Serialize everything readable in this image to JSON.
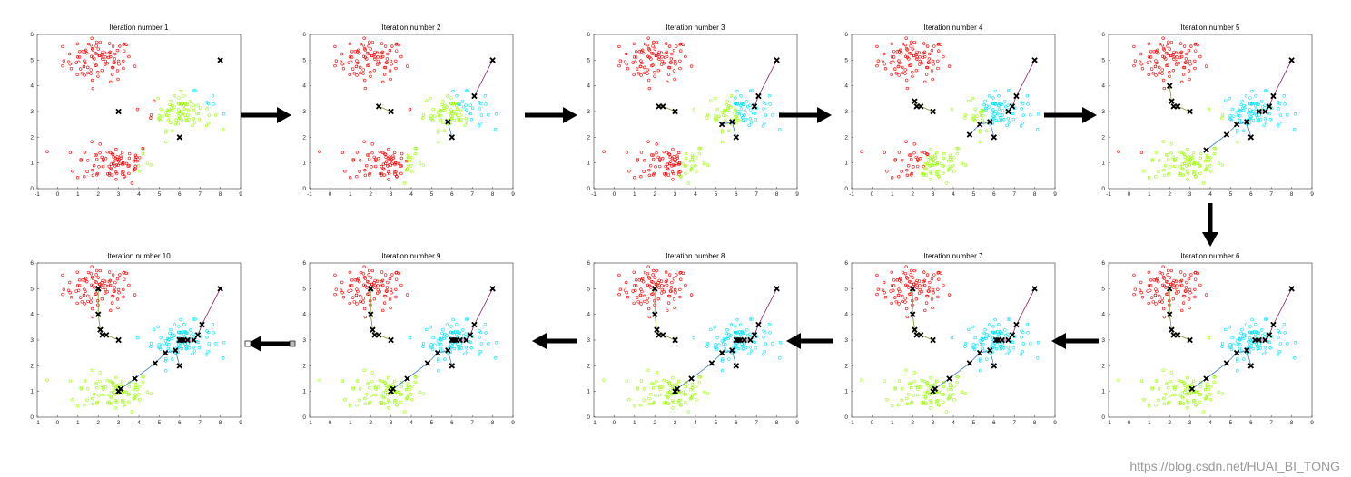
{
  "figure": {
    "watermark": "https://blog.csdn.net/HUAI_BI_TONG",
    "arrow_color": "#000000",
    "cluster_colors": {
      "red": "#ff0000",
      "green": "#99ff00",
      "cyan": "#00e5ff"
    },
    "centroid_marker": "x",
    "path_colors": [
      "#8b1a6b",
      "#7a9a2a",
      "#3a7fc4",
      "#8b1a6b"
    ]
  },
  "chart_data": [
    {
      "type": "scatter",
      "title": "Iteration number 1",
      "xlim": [
        -1,
        9
      ],
      "ylim": [
        0,
        6
      ],
      "xticks": [
        "-1",
        "0",
        "1",
        "2",
        "3",
        "4",
        "5",
        "6",
        "7",
        "8",
        "9"
      ],
      "yticks": [
        "0",
        "1",
        "2",
        "3",
        "4",
        "5",
        "6"
      ],
      "centroid_paths": [
        [
          [
            3.0,
            3.0
          ]
        ],
        [
          [
            6.0,
            2.0
          ]
        ],
        [
          [
            8.0,
            5.0
          ]
        ]
      ]
    },
    {
      "type": "scatter",
      "title": "Iteration number 2",
      "xlim": [
        -1,
        9
      ],
      "ylim": [
        0,
        6
      ],
      "xticks": [
        "-1",
        "0",
        "1",
        "2",
        "3",
        "4",
        "5",
        "6",
        "7",
        "8",
        "9"
      ],
      "yticks": [
        "0",
        "1",
        "2",
        "3",
        "4",
        "5",
        "6"
      ],
      "centroid_paths": [
        [
          [
            3.0,
            3.0
          ],
          [
            2.4,
            3.2
          ]
        ],
        [
          [
            6.0,
            2.0
          ],
          [
            5.8,
            2.6
          ]
        ],
        [
          [
            8.0,
            5.0
          ],
          [
            7.1,
            3.6
          ]
        ]
      ]
    },
    {
      "type": "scatter",
      "title": "Iteration number 3",
      "xlim": [
        -1,
        9
      ],
      "ylim": [
        0,
        6
      ],
      "xticks": [
        "-1",
        "0",
        "1",
        "2",
        "3",
        "4",
        "5",
        "6",
        "7",
        "8",
        "9"
      ],
      "yticks": [
        "0",
        "1",
        "2",
        "3",
        "4",
        "5",
        "6"
      ],
      "centroid_paths": [
        [
          [
            3.0,
            3.0
          ],
          [
            2.4,
            3.2
          ],
          [
            2.2,
            3.2
          ]
        ],
        [
          [
            6.0,
            2.0
          ],
          [
            5.8,
            2.6
          ],
          [
            5.3,
            2.5
          ]
        ],
        [
          [
            8.0,
            5.0
          ],
          [
            7.1,
            3.6
          ],
          [
            6.9,
            3.2
          ]
        ]
      ]
    },
    {
      "type": "scatter",
      "title": "Iteration number 4",
      "xlim": [
        -1,
        9
      ],
      "ylim": [
        0,
        6
      ],
      "xticks": [
        "-1",
        "0",
        "1",
        "2",
        "3",
        "4",
        "5",
        "6",
        "7",
        "8",
        "9"
      ],
      "yticks": [
        "0",
        "1",
        "2",
        "3",
        "4",
        "5",
        "6"
      ],
      "centroid_paths": [
        [
          [
            3.0,
            3.0
          ],
          [
            2.4,
            3.2
          ],
          [
            2.2,
            3.2
          ],
          [
            2.1,
            3.4
          ]
        ],
        [
          [
            6.0,
            2.0
          ],
          [
            5.8,
            2.6
          ],
          [
            5.3,
            2.5
          ],
          [
            4.8,
            2.1
          ]
        ],
        [
          [
            8.0,
            5.0
          ],
          [
            7.1,
            3.6
          ],
          [
            6.9,
            3.2
          ],
          [
            6.7,
            3.0
          ]
        ]
      ]
    },
    {
      "type": "scatter",
      "title": "Iteration number 5",
      "xlim": [
        -1,
        9
      ],
      "ylim": [
        0,
        6
      ],
      "xticks": [
        "-1",
        "0",
        "1",
        "2",
        "3",
        "4",
        "5",
        "6",
        "7",
        "8",
        "9"
      ],
      "yticks": [
        "0",
        "1",
        "2",
        "3",
        "4",
        "5",
        "6"
      ],
      "centroid_paths": [
        [
          [
            3.0,
            3.0
          ],
          [
            2.4,
            3.2
          ],
          [
            2.2,
            3.2
          ],
          [
            2.1,
            3.4
          ],
          [
            2.0,
            4.0
          ]
        ],
        [
          [
            6.0,
            2.0
          ],
          [
            5.8,
            2.6
          ],
          [
            5.3,
            2.5
          ],
          [
            4.8,
            2.1
          ],
          [
            3.8,
            1.5
          ]
        ],
        [
          [
            8.0,
            5.0
          ],
          [
            7.1,
            3.6
          ],
          [
            6.9,
            3.2
          ],
          [
            6.7,
            3.0
          ],
          [
            6.4,
            3.0
          ]
        ]
      ]
    },
    {
      "type": "scatter",
      "title": "Iteration number 6",
      "xlim": [
        -1,
        9
      ],
      "ylim": [
        0,
        6
      ],
      "xticks": [
        "-1",
        "0",
        "1",
        "2",
        "3",
        "4",
        "5",
        "6",
        "7",
        "8",
        "9"
      ],
      "yticks": [
        "0",
        "1",
        "2",
        "3",
        "4",
        "5",
        "6"
      ],
      "centroid_paths": [
        [
          [
            3.0,
            3.0
          ],
          [
            2.4,
            3.2
          ],
          [
            2.2,
            3.2
          ],
          [
            2.1,
            3.4
          ],
          [
            2.0,
            4.0
          ],
          [
            2.0,
            5.0
          ]
        ],
        [
          [
            6.0,
            2.0
          ],
          [
            5.8,
            2.6
          ],
          [
            5.3,
            2.5
          ],
          [
            4.8,
            2.1
          ],
          [
            3.8,
            1.5
          ],
          [
            3.1,
            1.1
          ]
        ],
        [
          [
            8.0,
            5.0
          ],
          [
            7.1,
            3.6
          ],
          [
            6.9,
            3.2
          ],
          [
            6.7,
            3.0
          ],
          [
            6.4,
            3.0
          ],
          [
            6.2,
            3.0
          ]
        ]
      ]
    },
    {
      "type": "scatter",
      "title": "Iteration number 7",
      "xlim": [
        -1,
        9
      ],
      "ylim": [
        0,
        6
      ],
      "xticks": [
        "-1",
        "0",
        "1",
        "2",
        "3",
        "4",
        "5",
        "6",
        "7",
        "8",
        "9"
      ],
      "yticks": [
        "0",
        "1",
        "2",
        "3",
        "4",
        "5",
        "6"
      ],
      "centroid_paths": [
        [
          [
            3.0,
            3.0
          ],
          [
            2.4,
            3.2
          ],
          [
            2.2,
            3.2
          ],
          [
            2.1,
            3.4
          ],
          [
            2.0,
            4.0
          ],
          [
            2.0,
            5.0
          ],
          [
            2.0,
            5.0
          ]
        ],
        [
          [
            6.0,
            2.0
          ],
          [
            5.8,
            2.6
          ],
          [
            5.3,
            2.5
          ],
          [
            4.8,
            2.1
          ],
          [
            3.8,
            1.5
          ],
          [
            3.1,
            1.1
          ],
          [
            3.0,
            1.0
          ]
        ],
        [
          [
            8.0,
            5.0
          ],
          [
            7.1,
            3.6
          ],
          [
            6.9,
            3.2
          ],
          [
            6.7,
            3.0
          ],
          [
            6.4,
            3.0
          ],
          [
            6.2,
            3.0
          ],
          [
            6.1,
            3.0
          ]
        ]
      ]
    },
    {
      "type": "scatter",
      "title": "Iteration number 8",
      "xlim": [
        -1,
        9
      ],
      "ylim": [
        0,
        6
      ],
      "xticks": [
        "-1",
        "0",
        "1",
        "2",
        "3",
        "4",
        "5",
        "6",
        "7",
        "8",
        "9"
      ],
      "yticks": [
        "0",
        "1",
        "2",
        "3",
        "4",
        "5",
        "6"
      ],
      "centroid_paths": [
        [
          [
            3.0,
            3.0
          ],
          [
            2.4,
            3.2
          ],
          [
            2.2,
            3.2
          ],
          [
            2.1,
            3.4
          ],
          [
            2.0,
            4.0
          ],
          [
            2.0,
            5.0
          ],
          [
            2.0,
            5.0
          ],
          [
            2.0,
            5.0
          ]
        ],
        [
          [
            6.0,
            2.0
          ],
          [
            5.8,
            2.6
          ],
          [
            5.3,
            2.5
          ],
          [
            4.8,
            2.1
          ],
          [
            3.8,
            1.5
          ],
          [
            3.1,
            1.1
          ],
          [
            3.0,
            1.0
          ],
          [
            3.0,
            1.0
          ]
        ],
        [
          [
            8.0,
            5.0
          ],
          [
            7.1,
            3.6
          ],
          [
            6.9,
            3.2
          ],
          [
            6.7,
            3.0
          ],
          [
            6.4,
            3.0
          ],
          [
            6.2,
            3.0
          ],
          [
            6.1,
            3.0
          ],
          [
            6.0,
            3.0
          ]
        ]
      ]
    },
    {
      "type": "scatter",
      "title": "Iteration number 9",
      "xlim": [
        -1,
        9
      ],
      "ylim": [
        0,
        6
      ],
      "xticks": [
        "-1",
        "0",
        "1",
        "2",
        "3",
        "4",
        "5",
        "6",
        "7",
        "8",
        "9"
      ],
      "yticks": [
        "0",
        "1",
        "2",
        "3",
        "4",
        "5",
        "6"
      ],
      "centroid_paths": [
        [
          [
            3.0,
            3.0
          ],
          [
            2.4,
            3.2
          ],
          [
            2.2,
            3.2
          ],
          [
            2.1,
            3.4
          ],
          [
            2.0,
            4.0
          ],
          [
            2.0,
            5.0
          ],
          [
            2.0,
            5.0
          ],
          [
            2.0,
            5.0
          ],
          [
            2.0,
            5.0
          ]
        ],
        [
          [
            6.0,
            2.0
          ],
          [
            5.8,
            2.6
          ],
          [
            5.3,
            2.5
          ],
          [
            4.8,
            2.1
          ],
          [
            3.8,
            1.5
          ],
          [
            3.1,
            1.1
          ],
          [
            3.0,
            1.0
          ],
          [
            3.0,
            1.0
          ],
          [
            3.0,
            1.0
          ]
        ],
        [
          [
            8.0,
            5.0
          ],
          [
            7.1,
            3.6
          ],
          [
            6.9,
            3.2
          ],
          [
            6.7,
            3.0
          ],
          [
            6.4,
            3.0
          ],
          [
            6.2,
            3.0
          ],
          [
            6.1,
            3.0
          ],
          [
            6.0,
            3.0
          ],
          [
            6.0,
            3.0
          ]
        ]
      ]
    },
    {
      "type": "scatter",
      "title": "Iteration number 10",
      "xlim": [
        -1,
        9
      ],
      "ylim": [
        0,
        6
      ],
      "xticks": [
        "-1",
        "0",
        "1",
        "2",
        "3",
        "4",
        "5",
        "6",
        "7",
        "8",
        "9"
      ],
      "yticks": [
        "0",
        "1",
        "2",
        "3",
        "4",
        "5",
        "6"
      ],
      "centroid_paths": [
        [
          [
            3.0,
            3.0
          ],
          [
            2.4,
            3.2
          ],
          [
            2.2,
            3.2
          ],
          [
            2.1,
            3.4
          ],
          [
            2.0,
            4.0
          ],
          [
            2.0,
            5.0
          ],
          [
            2.0,
            5.0
          ],
          [
            2.0,
            5.0
          ],
          [
            2.0,
            5.0
          ],
          [
            2.0,
            5.0
          ]
        ],
        [
          [
            6.0,
            2.0
          ],
          [
            5.8,
            2.6
          ],
          [
            5.3,
            2.5
          ],
          [
            4.8,
            2.1
          ],
          [
            3.8,
            1.5
          ],
          [
            3.1,
            1.1
          ],
          [
            3.0,
            1.0
          ],
          [
            3.0,
            1.0
          ],
          [
            3.0,
            1.0
          ],
          [
            3.0,
            1.0
          ]
        ],
        [
          [
            8.0,
            5.0
          ],
          [
            7.1,
            3.6
          ],
          [
            6.9,
            3.2
          ],
          [
            6.7,
            3.0
          ],
          [
            6.4,
            3.0
          ],
          [
            6.2,
            3.0
          ],
          [
            6.1,
            3.0
          ],
          [
            6.0,
            3.0
          ],
          [
            6.0,
            3.0
          ],
          [
            6.0,
            3.0
          ]
        ]
      ]
    }
  ]
}
